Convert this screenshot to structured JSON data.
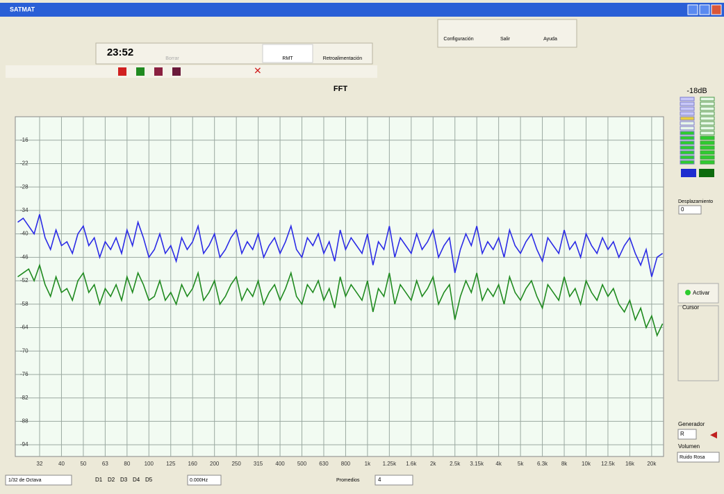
{
  "window": {
    "title": "SATMAT",
    "toolbar": {
      "buttons": [
        "Configuración",
        "Salir",
        "Ayuda"
      ],
      "clock": "23:52",
      "mode_buttons": [
        "Borrar",
        "RMT",
        "Retroalimentación"
      ]
    },
    "meter": {
      "label": "-18dB"
    },
    "side": {
      "offset_label": "Desplazamiento",
      "offset_value": "0",
      "activate": "Activar",
      "cursor": "Cursor",
      "generator": "Generador",
      "generator_value": "R",
      "volume": "Volumen",
      "noise": "Ruido Rosa"
    },
    "status": {
      "resolution": "1/32 de Octava",
      "channels": [
        "D1",
        "D2",
        "D3",
        "D4",
        "D5"
      ],
      "frequency": "0.000Hz",
      "averages_label": "Promedios",
      "averages_value": "4"
    }
  },
  "chart_data": {
    "type": "line",
    "title": "FFT",
    "categories": [
      null,
      null,
      null,
      null,
      "32",
      null,
      null,
      null,
      "40",
      null,
      null,
      null,
      "50",
      null,
      null,
      null,
      "63",
      null,
      null,
      null,
      "80",
      null,
      null,
      null,
      "100",
      null,
      null,
      null,
      "125",
      null,
      null,
      null,
      "160",
      null,
      null,
      null,
      "200",
      null,
      null,
      null,
      "250",
      null,
      null,
      null,
      "315",
      null,
      null,
      null,
      "400",
      null,
      null,
      null,
      "500",
      null,
      null,
      null,
      "630",
      null,
      null,
      null,
      "800",
      null,
      null,
      null,
      "1k",
      null,
      null,
      null,
      "1.25k",
      null,
      null,
      null,
      "1.6k",
      null,
      null,
      null,
      "2k",
      null,
      null,
      null,
      "2.5k",
      null,
      null,
      null,
      "3.15k",
      null,
      null,
      null,
      "4k",
      null,
      null,
      null,
      "5k",
      null,
      null,
      null,
      "6.3k",
      null,
      null,
      null,
      "8k",
      null,
      null,
      null,
      "10k",
      null,
      null,
      null,
      "12.5k",
      null,
      null,
      null,
      "16k",
      null,
      null,
      null,
      "20k",
      null,
      null
    ],
    "series": [
      {
        "color": "#2b2be6",
        "values": [
          -37,
          -36,
          -38,
          -40,
          -35,
          -41,
          -44,
          -39,
          -43,
          -42,
          -45,
          -40,
          -38,
          -43,
          -41,
          -46,
          -42,
          -44,
          -41,
          -45,
          -39,
          -43,
          -37,
          -41,
          -46,
          -44,
          -40,
          -45,
          -43,
          -47,
          -41,
          -44,
          -42,
          -38,
          -45,
          -43,
          -40,
          -46,
          -44,
          -41,
          -39,
          -45,
          -42,
          -44,
          -40,
          -46,
          -43,
          -41,
          -45,
          -42,
          -38,
          -44,
          -46,
          -41,
          -43,
          -40,
          -45,
          -42,
          -47,
          -39,
          -44,
          -41,
          -43,
          -45,
          -40,
          -48,
          -42,
          -44,
          -38,
          -46,
          -41,
          -43,
          -45,
          -40,
          -44,
          -42,
          -39,
          -46,
          -43,
          -41,
          -50,
          -44,
          -40,
          -43,
          -38,
          -45,
          -42,
          -44,
          -41,
          -46,
          -39,
          -43,
          -45,
          -42,
          -40,
          -44,
          -47,
          -41,
          -43,
          -45,
          -39,
          -44,
          -42,
          -46,
          -40,
          -43,
          -45,
          -41,
          -44,
          -42,
          -46,
          -43,
          -41,
          -45,
          -48,
          -44,
          -51,
          -46,
          -45
        ]
      },
      {
        "color": "#1f8a1f",
        "values": [
          -51,
          -50,
          -49,
          -52,
          -48,
          -53,
          -56,
          -51,
          -55,
          -54,
          -57,
          -52,
          -50,
          -55,
          -53,
          -58,
          -54,
          -56,
          -53,
          -57,
          -51,
          -55,
          -50,
          -53,
          -57,
          -56,
          -52,
          -57,
          -55,
          -58,
          -53,
          -56,
          -54,
          -50,
          -57,
          -55,
          -52,
          -58,
          -56,
          -53,
          -51,
          -57,
          -54,
          -56,
          -52,
          -58,
          -55,
          -53,
          -57,
          -54,
          -50,
          -56,
          -58,
          -53,
          -55,
          -52,
          -57,
          -54,
          -59,
          -51,
          -56,
          -53,
          -55,
          -57,
          -52,
          -60,
          -54,
          -56,
          -50,
          -58,
          -53,
          -55,
          -57,
          -52,
          -56,
          -54,
          -51,
          -58,
          -55,
          -53,
          -62,
          -56,
          -52,
          -55,
          -50,
          -57,
          -54,
          -56,
          -53,
          -58,
          -51,
          -55,
          -57,
          -54,
          -52,
          -56,
          -59,
          -53,
          -55,
          -57,
          -51,
          -56,
          -54,
          -58,
          -52,
          -55,
          -57,
          -53,
          -56,
          -54,
          -58,
          -60,
          -57,
          -62,
          -59,
          -64,
          -61,
          -66,
          -63
        ]
      }
    ],
    "ylim": [
      -97,
      -10
    ],
    "yticks": [
      -16,
      -22,
      -28,
      -34,
      -40,
      -46,
      -52,
      -58,
      -64,
      -70,
      -76,
      -82,
      -88,
      -94
    ],
    "grid": true
  }
}
